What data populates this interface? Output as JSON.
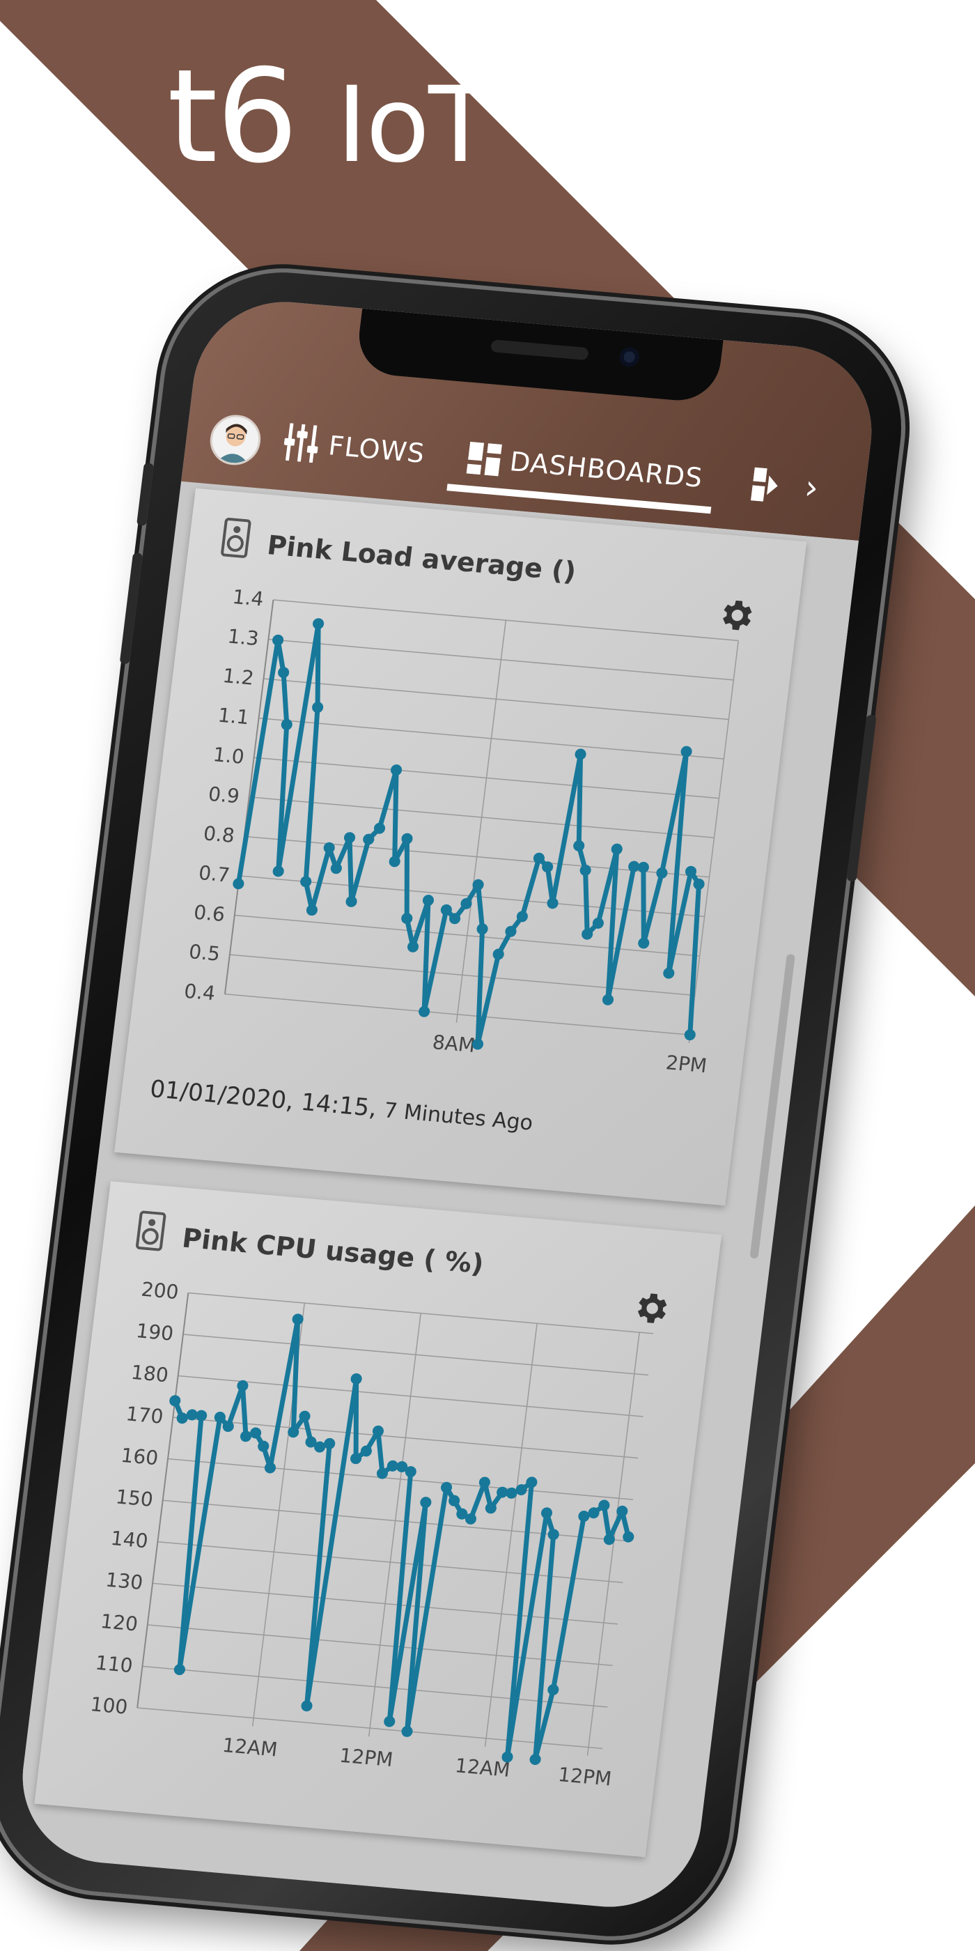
{
  "brand": {
    "name": "t6",
    "suffix": "IoT"
  },
  "colors": {
    "brown": "#7a5446",
    "line": "#17789a",
    "white": "#ffffff"
  },
  "nav": {
    "tabs": [
      {
        "label": "FLOWS",
        "icon": "sliders-icon"
      },
      {
        "label": "DASHBOARDS",
        "icon": "dashboard-icon",
        "active": true
      }
    ],
    "more_icon": "snippet-icon",
    "chevron": "›"
  },
  "cards": [
    {
      "title": "Pink Load average ()",
      "timestamp": "01/01/2020, 14:15,",
      "ago": "7 Minutes Ago"
    },
    {
      "title": "Pink CPU usage ( %)"
    }
  ],
  "chart_data": [
    {
      "type": "line",
      "title": "Pink Load average ()",
      "ylim": [
        0.4,
        1.4
      ],
      "y_ticks": [
        "1.4",
        "1.3",
        "1.2",
        "1.1",
        "1.0",
        "0.9",
        "0.8",
        "0.7",
        "0.6",
        "0.5",
        "0.4"
      ],
      "x_ticks": [
        {
          "label": "8AM",
          "x": 0.5
        },
        {
          "label": "2PM",
          "x": 1.0
        }
      ],
      "grid": true,
      "series": [
        {
          "values": [
            0.68,
            1.3,
            1.22,
            1.09,
            0.72,
            1.35,
            1.14,
            0.7,
            0.63,
            0.79,
            0.74,
            0.82,
            0.66,
            0.82,
            0.85,
            1.0,
            0.77,
            0.83,
            0.63,
            0.56,
            0.68,
            0.4,
            0.66,
            0.64,
            0.68,
            0.73,
            0.62,
            0.33,
            0.56,
            0.62,
            0.66,
            0.81,
            0.79,
            0.7,
            1.08,
            0.85,
            0.79,
            0.63,
            0.66,
            0.85,
            0.47,
            0.81,
            0.81,
            0.62,
            0.8,
            1.11,
            0.55,
            0.81,
            0.78,
            0.4
          ]
        }
      ]
    },
    {
      "type": "line",
      "title": "Pink CPU usage ( %)",
      "ylim": [
        100,
        200
      ],
      "y_ticks": [
        "200",
        "190",
        "180",
        "170",
        "160",
        "150",
        "140",
        "130",
        "120",
        "110",
        "100"
      ],
      "x_ticks": [
        {
          "label": "12AM",
          "x": 0.25
        },
        {
          "label": "12PM",
          "x": 0.5
        },
        {
          "label": "12AM",
          "x": 0.75
        },
        {
          "label": "12PM",
          "x": 0.97
        }
      ],
      "grid": true,
      "series": [
        {
          "values": [
            174,
            170,
            171,
            171,
            110,
            171,
            169,
            179,
            167,
            168,
            165,
            160,
            196,
            169,
            173,
            167,
            166,
            167,
            104,
            183,
            164,
            166,
            171,
            161,
            163,
            163,
            162,
            102,
            155,
            100,
            159,
            156,
            153,
            152,
            161,
            155,
            159,
            159,
            160,
            162,
            96,
            155,
            150,
            96,
            113,
            155,
            156,
            158,
            150,
            157,
            151
          ]
        }
      ]
    }
  ]
}
